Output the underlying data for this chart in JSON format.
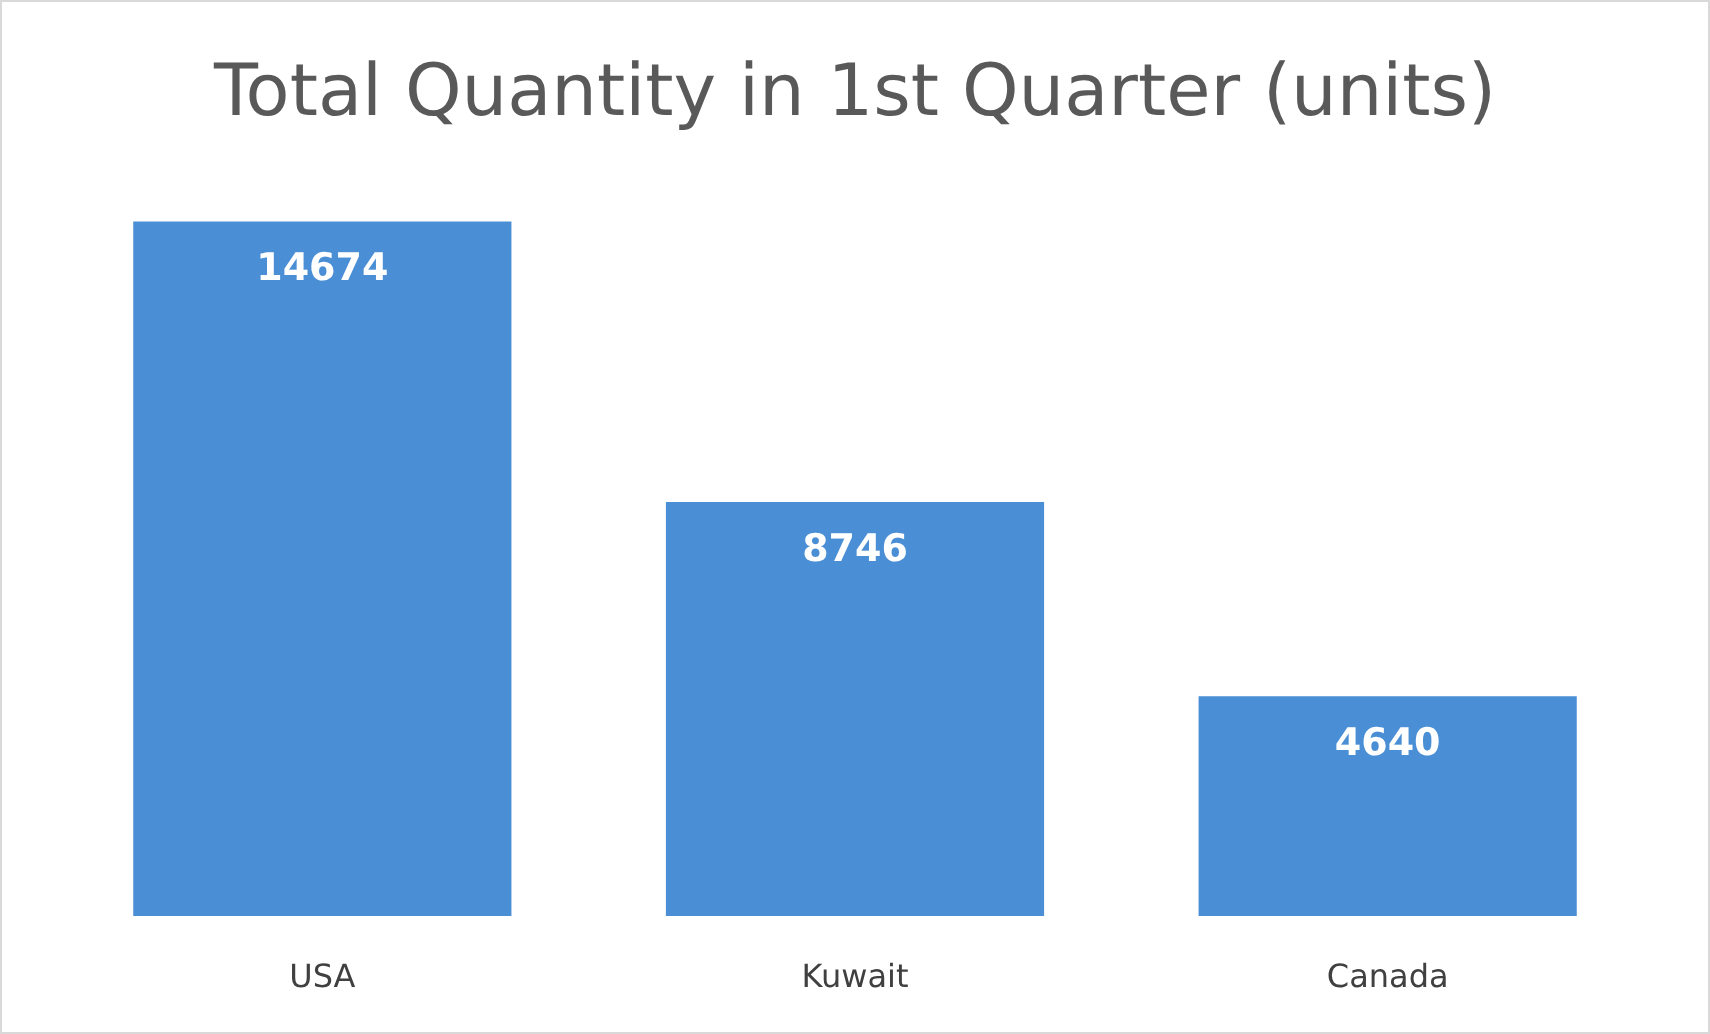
{
  "chart_data": {
    "type": "bar",
    "title": "Total Quantity in 1st Quarter (units)",
    "categories": [
      "USA",
      "Kuwait",
      "Canada"
    ],
    "values": [
      14674,
      8746,
      4640
    ],
    "color": "#4a8fd5",
    "data_labels": true
  }
}
